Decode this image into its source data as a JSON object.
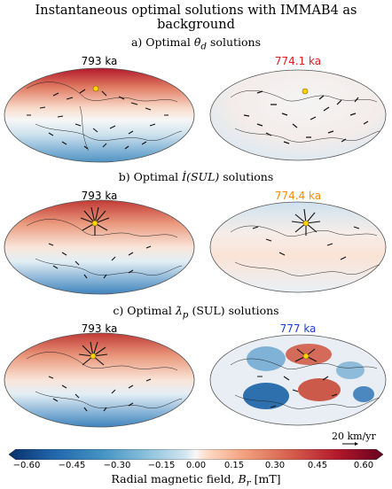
{
  "title": "Instantaneous optimal solutions with IMMAB4 as background",
  "panels": [
    {
      "heading_prefix": "a) Optimal",
      "heading_symbol": "θ̇",
      "heading_sub": "d",
      "heading_suffix": "solutions",
      "left_age": "793 ka",
      "right_age": "774.1 ka",
      "right_age_color": "#e31a1c"
    },
    {
      "heading_prefix": "b) Optimal",
      "heading_symbol": "İ",
      "heading_sub": "(SUL)",
      "heading_suffix": "solutions",
      "left_age": "793 ka",
      "right_age": "774.4 ka",
      "right_age_color": "#ff8c00"
    },
    {
      "heading_prefix": "c) Optimal",
      "heading_symbol": "λ̇",
      "heading_sub": "p",
      "heading_suffix": "(SUL) solutions",
      "left_age": "793 ka",
      "right_age": "777 ka",
      "right_age_color": "#1f3fd6"
    }
  ],
  "scale_label": "20 km/yr",
  "colorbar": {
    "ticks": [
      "−0.60",
      "−0.45",
      "−0.30",
      "−0.15",
      "0.00",
      "0.15",
      "0.30",
      "0.45",
      "0.60"
    ],
    "label_prefix": "Radial magnetic field,",
    "label_symbol": "B",
    "label_sub": "r",
    "label_unit": "[mT]",
    "colormap": "RdBu_r"
  }
}
